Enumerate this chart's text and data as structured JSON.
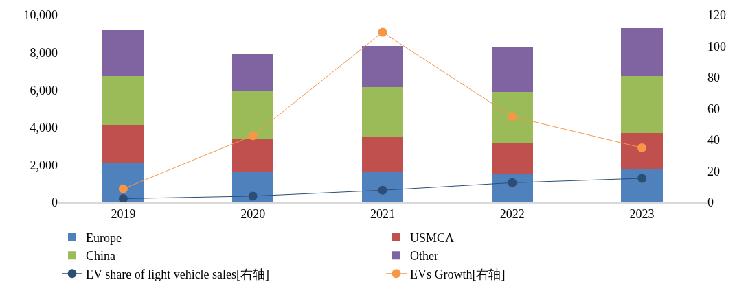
{
  "chart_data": {
    "type": "bar",
    "stacked": true,
    "categories": [
      "2019",
      "2020",
      "2021",
      "2022",
      "2023"
    ],
    "series": [
      {
        "name": "Europe",
        "color": "#4f81bd",
        "values": [
          2100,
          1650,
          1650,
          1500,
          1750
        ]
      },
      {
        "name": "USMCA",
        "color": "#c0504d",
        "values": [
          2050,
          1750,
          1850,
          1700,
          1950
        ]
      },
      {
        "name": "China",
        "color": "#9bbb59",
        "values": [
          2600,
          2550,
          2650,
          2700,
          3050
        ]
      },
      {
        "name": "Other",
        "color": "#8064a2",
        "values": [
          2450,
          2000,
          2200,
          2400,
          2550
        ]
      },
      {
        "name": "EV share of light vehicle sales[右轴]",
        "type": "line",
        "axis": "y2",
        "marker": "circle",
        "color": "#2c4d75",
        "values": [
          2.4,
          4.0,
          7.8,
          12.6,
          15.4
        ]
      },
      {
        "name": "EVs Growth[右轴]",
        "type": "line",
        "axis": "y2",
        "marker": "circle",
        "color": "#f79646",
        "values": [
          8.7,
          42.8,
          109,
          55,
          35
        ]
      }
    ],
    "ylim": [
      0,
      10000
    ],
    "yticks": [
      {
        "value": 0,
        "label": "0"
      },
      {
        "value": 2000,
        "label": "2,000"
      },
      {
        "value": 4000,
        "label": "4,000"
      },
      {
        "value": 6000,
        "label": "6,000"
      },
      {
        "value": 8000,
        "label": "8,000"
      },
      {
        "value": 10000,
        "label": "10,000"
      }
    ],
    "y2lim": [
      0,
      120
    ],
    "y2ticks": [
      0,
      20,
      40,
      60,
      80,
      100,
      120
    ],
    "legend": "bottom"
  }
}
